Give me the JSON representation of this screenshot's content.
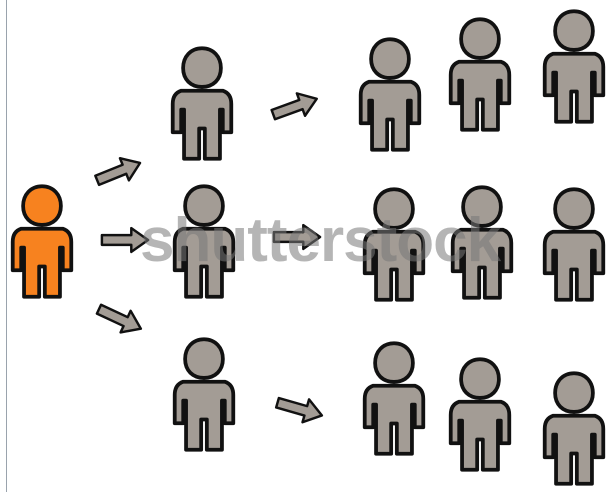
{
  "colors": {
    "origin_person": "#f7821f",
    "person": "#a39c95",
    "outline": "#111111",
    "arrow": "#a39c95"
  },
  "watermark": {
    "text": "shutterstock"
  },
  "diagram": {
    "origin": {
      "id": "origin",
      "role": "source"
    },
    "tiers": [
      {
        "level": 1,
        "count": 3
      },
      {
        "level": 2,
        "count": 9
      }
    ],
    "branches_per_node": 3
  }
}
